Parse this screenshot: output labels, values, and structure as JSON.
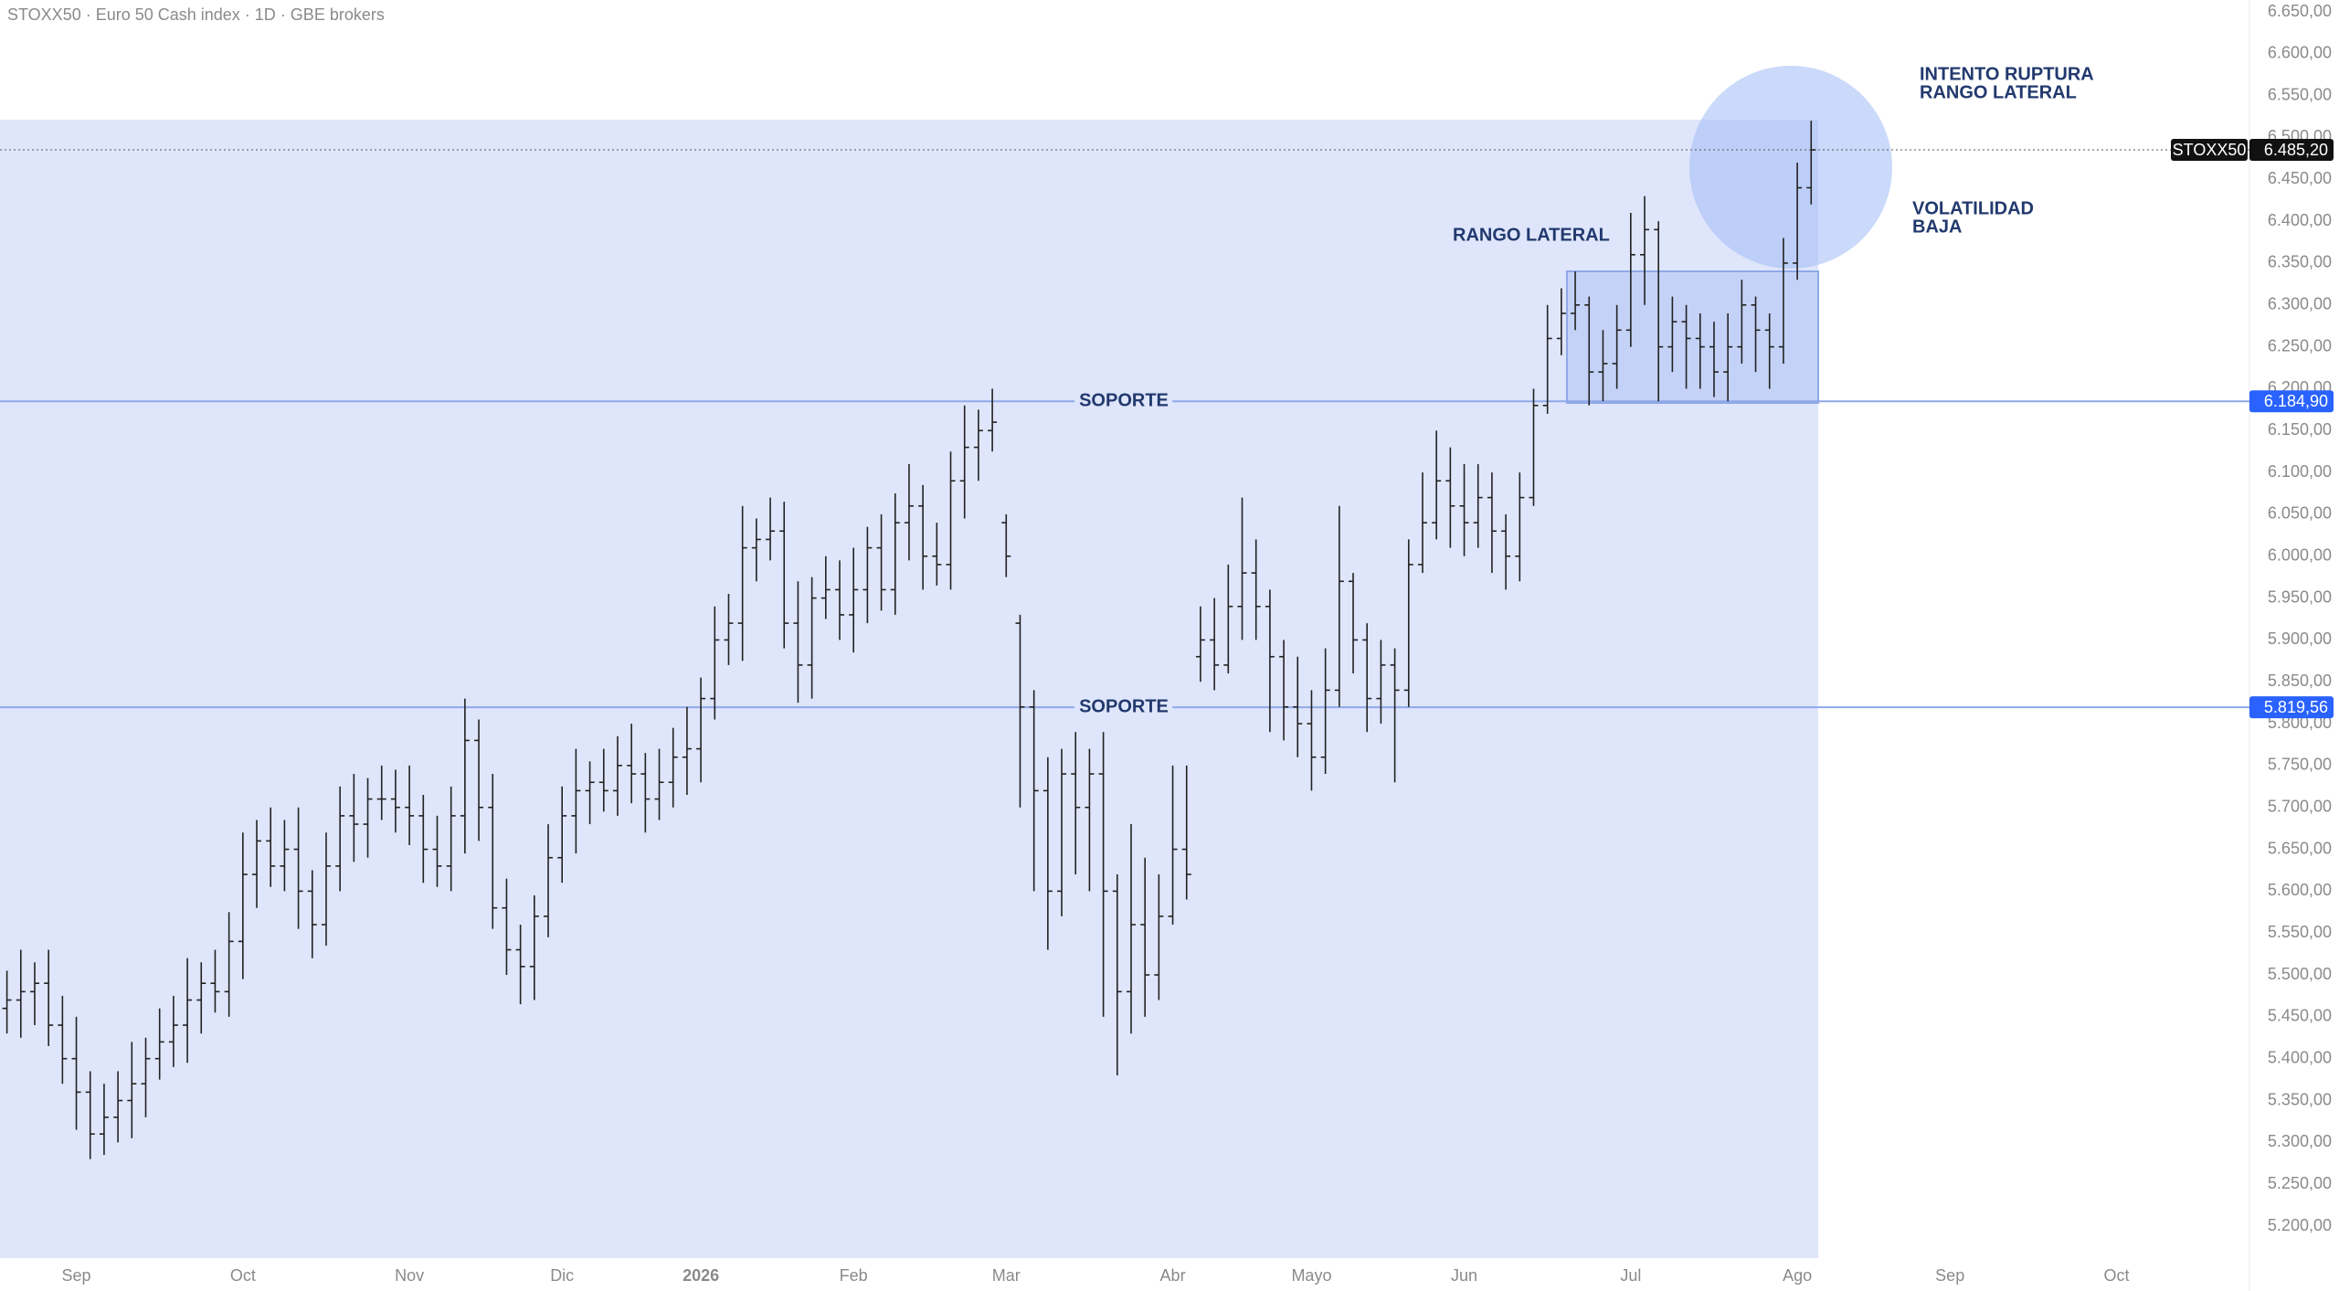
{
  "chart_data": {
    "type": "ohlc",
    "title": "STOXX50 · Euro 50 Cash index · 1D · GBE brokers",
    "color": "#222222",
    "categories": [
      null,
      null,
      null,
      null,
      null,
      "Sep",
      null,
      null,
      null,
      null,
      null,
      null,
      null,
      null,
      null,
      null,
      null,
      "Oct",
      null,
      null,
      null,
      null,
      null,
      null,
      null,
      null,
      null,
      null,
      null,
      "Nov",
      null,
      null,
      null,
      null,
      null,
      null,
      null,
      null,
      null,
      null,
      "Dic",
      null,
      null,
      null,
      null,
      null,
      null,
      null,
      null,
      null,
      "2026",
      null,
      null,
      null,
      null,
      null,
      null,
      null,
      null,
      null,
      null,
      "Feb",
      null,
      null,
      null,
      null,
      null,
      null,
      null,
      null,
      null,
      null,
      "Mar",
      null,
      null,
      null,
      null,
      null,
      null,
      null,
      null,
      null,
      null,
      null,
      "Abr",
      null,
      null,
      null,
      null,
      null,
      null,
      null,
      null,
      null,
      "Mayo",
      null,
      null,
      null,
      null,
      null,
      null,
      null,
      null,
      null,
      null,
      "Jun",
      null,
      null,
      null,
      null,
      null,
      null,
      null,
      null,
      null,
      null,
      null,
      "Jul",
      null,
      null,
      null,
      null,
      null,
      null,
      null,
      null,
      null,
      null,
      null,
      "Ago",
      null,
      null,
      null,
      null,
      null,
      null,
      null,
      null,
      null,
      null,
      "Sep",
      null,
      null,
      null,
      null,
      null,
      null,
      null,
      null,
      null,
      null,
      null,
      "Oct",
      null,
      null,
      null,
      null,
      null,
      null,
      null,
      null,
      null
    ],
    "ohlc": [
      [
        5460,
        5505,
        5430,
        5470
      ],
      [
        5470,
        5530,
        5425,
        5480
      ],
      [
        5480,
        5515,
        5440,
        5490
      ],
      [
        5490,
        5530,
        5415,
        5440
      ],
      [
        5440,
        5475,
        5370,
        5400
      ],
      [
        5400,
        5450,
        5315,
        5360
      ],
      [
        5360,
        5385,
        5280,
        5310
      ],
      [
        5310,
        5370,
        5285,
        5330
      ],
      [
        5330,
        5385,
        5300,
        5350
      ],
      [
        5350,
        5420,
        5305,
        5370
      ],
      [
        5370,
        5425,
        5330,
        5400
      ],
      [
        5400,
        5460,
        5375,
        5420
      ],
      [
        5420,
        5475,
        5390,
        5440
      ],
      [
        5440,
        5520,
        5395,
        5470
      ],
      [
        5470,
        5515,
        5430,
        5490
      ],
      [
        5490,
        5530,
        5455,
        5480
      ],
      [
        5480,
        5575,
        5450,
        5540
      ],
      [
        5540,
        5670,
        5495,
        5620
      ],
      [
        5620,
        5685,
        5580,
        5660
      ],
      [
        5660,
        5700,
        5605,
        5630
      ],
      [
        5630,
        5685,
        5600,
        5650
      ],
      [
        5650,
        5700,
        5555,
        5600
      ],
      [
        5600,
        5625,
        5520,
        5560
      ],
      [
        5560,
        5670,
        5535,
        5630
      ],
      [
        5630,
        5725,
        5600,
        5690
      ],
      [
        5690,
        5740,
        5635,
        5680
      ],
      [
        5680,
        5735,
        5640,
        5710
      ],
      [
        5710,
        5750,
        5685,
        5710
      ],
      [
        5710,
        5745,
        5670,
        5700
      ],
      [
        5700,
        5750,
        5655,
        5690
      ],
      [
        5690,
        5715,
        5610,
        5650
      ],
      [
        5650,
        5690,
        5605,
        5630
      ],
      [
        5630,
        5725,
        5600,
        5690
      ],
      [
        5690,
        5830,
        5645,
        5780
      ],
      [
        5780,
        5805,
        5660,
        5700
      ],
      [
        5700,
        5740,
        5555,
        5580
      ],
      [
        5580,
        5615,
        5500,
        5530
      ],
      [
        5530,
        5560,
        5465,
        5510
      ],
      [
        5510,
        5595,
        5470,
        5570
      ],
      [
        5570,
        5680,
        5545,
        5640
      ],
      [
        5640,
        5725,
        5610,
        5690
      ],
      [
        5690,
        5770,
        5645,
        5720
      ],
      [
        5720,
        5755,
        5680,
        5730
      ],
      [
        5730,
        5770,
        5695,
        5720
      ],
      [
        5720,
        5785,
        5690,
        5750
      ],
      [
        5750,
        5800,
        5705,
        5740
      ],
      [
        5740,
        5765,
        5670,
        5710
      ],
      [
        5710,
        5770,
        5685,
        5730
      ],
      [
        5730,
        5795,
        5700,
        5760
      ],
      [
        5760,
        5820,
        5715,
        5770
      ],
      [
        5770,
        5855,
        5730,
        5830
      ],
      [
        5830,
        5940,
        5805,
        5900
      ],
      [
        5900,
        5955,
        5870,
        5920
      ],
      [
        5920,
        6060,
        5875,
        6010
      ],
      [
        6010,
        6045,
        5970,
        6020
      ],
      [
        6020,
        6070,
        5995,
        6030
      ],
      [
        6030,
        6065,
        5890,
        5920
      ],
      [
        5920,
        5970,
        5825,
        5870
      ],
      [
        5870,
        5975,
        5830,
        5950
      ],
      [
        5950,
        6000,
        5925,
        5960
      ],
      [
        5960,
        5995,
        5900,
        5930
      ],
      [
        5930,
        6010,
        5885,
        5960
      ],
      [
        5960,
        6035,
        5920,
        6010
      ],
      [
        6010,
        6050,
        5935,
        5960
      ],
      [
        5960,
        6075,
        5930,
        6040
      ],
      [
        6040,
        6110,
        5995,
        6060
      ],
      [
        6060,
        6085,
        5960,
        6000
      ],
      [
        6000,
        6040,
        5965,
        5990
      ],
      [
        5990,
        6125,
        5960,
        6090
      ],
      [
        6090,
        6180,
        6045,
        6130
      ],
      [
        6130,
        6175,
        6090,
        6150
      ],
      [
        6150,
        6200,
        6125,
        6160
      ],
      [
        6040,
        6050,
        5975,
        6000
      ],
      [
        5920,
        5930,
        5700,
        5820
      ],
      [
        5820,
        5840,
        5600,
        5720
      ],
      [
        5720,
        5760,
        5530,
        5600
      ],
      [
        5600,
        5770,
        5570,
        5740
      ],
      [
        5740,
        5790,
        5620,
        5700
      ],
      [
        5700,
        5770,
        5600,
        5740
      ],
      [
        5740,
        5790,
        5450,
        5600
      ],
      [
        5600,
        5620,
        5380,
        5480
      ],
      [
        5480,
        5680,
        5430,
        5560
      ],
      [
        5560,
        5640,
        5450,
        5500
      ],
      [
        5500,
        5620,
        5470,
        5570
      ],
      [
        5570,
        5750,
        5560,
        5650
      ],
      [
        5650,
        5750,
        5590,
        5620
      ],
      [
        5880,
        5940,
        5850,
        5900
      ],
      [
        5900,
        5950,
        5840,
        5870
      ],
      [
        5870,
        5990,
        5860,
        5940
      ],
      [
        5940,
        6070,
        5900,
        5980
      ],
      [
        5980,
        6020,
        5900,
        5940
      ],
      [
        5940,
        5960,
        5790,
        5880
      ],
      [
        5880,
        5900,
        5780,
        5820
      ],
      [
        5820,
        5880,
        5760,
        5800
      ],
      [
        5800,
        5840,
        5720,
        5760
      ],
      [
        5760,
        5890,
        5740,
        5840
      ],
      [
        5840,
        6060,
        5820,
        5970
      ],
      [
        5970,
        5980,
        5860,
        5900
      ],
      [
        5900,
        5920,
        5790,
        5830
      ],
      [
        5830,
        5900,
        5800,
        5870
      ],
      [
        5870,
        5890,
        5730,
        5840
      ],
      [
        5840,
        6020,
        5820,
        5990
      ],
      [
        5990,
        6100,
        5980,
        6040
      ],
      [
        6040,
        6150,
        6020,
        6090
      ],
      [
        6090,
        6130,
        6010,
        6060
      ],
      [
        6060,
        6110,
        6000,
        6040
      ],
      [
        6040,
        6110,
        6010,
        6070
      ],
      [
        6070,
        6100,
        5980,
        6030
      ],
      [
        6030,
        6050,
        5960,
        6000
      ],
      [
        6000,
        6100,
        5970,
        6070
      ],
      [
        6070,
        6200,
        6060,
        6180
      ],
      [
        6180,
        6300,
        6170,
        6260
      ],
      [
        6260,
        6320,
        6240,
        6290
      ],
      [
        6290,
        6340,
        6270,
        6300
      ],
      [
        6300,
        6310,
        6180,
        6220
      ],
      [
        6220,
        6270,
        6185,
        6230
      ],
      [
        6230,
        6300,
        6200,
        6270
      ],
      [
        6270,
        6410,
        6250,
        6360
      ],
      [
        6360,
        6430,
        6300,
        6390
      ],
      [
        6390,
        6400,
        6185,
        6250
      ],
      [
        6250,
        6310,
        6220,
        6280
      ],
      [
        6280,
        6300,
        6200,
        6260
      ],
      [
        6260,
        6290,
        6200,
        6250
      ],
      [
        6250,
        6280,
        6190,
        6220
      ],
      [
        6220,
        6290,
        6185,
        6250
      ],
      [
        6250,
        6330,
        6230,
        6300
      ],
      [
        6300,
        6310,
        6220,
        6270
      ],
      [
        6270,
        6290,
        6200,
        6250
      ],
      [
        6250,
        6380,
        6230,
        6350
      ],
      [
        6350,
        6470,
        6330,
        6440
      ],
      [
        6440,
        6520,
        6420,
        6485.2
      ],
      null,
      null,
      null,
      null,
      null,
      null,
      null,
      null,
      null,
      null,
      null,
      null,
      null,
      null,
      null,
      null,
      null,
      null,
      null,
      null,
      null,
      null,
      null,
      null,
      null,
      null,
      null,
      null,
      null,
      null,
      null
    ],
    "ylim": [
      5200,
      6650
    ],
    "yticks": [
      {
        "value": 5200,
        "label": "5.200,00"
      },
      {
        "value": 5250,
        "label": "5.250,00"
      },
      {
        "value": 5300,
        "label": "5.300,00"
      },
      {
        "value": 5350,
        "label": "5.350,00"
      },
      {
        "value": 5400,
        "label": "5.400,00"
      },
      {
        "value": 5450,
        "label": "5.450,00"
      },
      {
        "value": 5500,
        "label": "5.500,00"
      },
      {
        "value": 5550,
        "label": "5.550,00"
      },
      {
        "value": 5600,
        "label": "5.600,00"
      },
      {
        "value": 5650,
        "label": "5.650,00"
      },
      {
        "value": 5700,
        "label": "5.700,00"
      },
      {
        "value": 5750,
        "label": "5.750,00"
      },
      {
        "value": 5800,
        "label": "5.800,00"
      },
      {
        "value": 5850,
        "label": "5.850,00"
      },
      {
        "value": 5900,
        "label": "5.900,00"
      },
      {
        "value": 5950,
        "label": "5.950,00"
      },
      {
        "value": 6000,
        "label": "6.000,00"
      },
      {
        "value": 6050,
        "label": "6.050,00"
      },
      {
        "value": 6100,
        "label": "6.100,00"
      },
      {
        "value": 6150,
        "label": "6.150,00"
      },
      {
        "value": 6200,
        "label": "6.200,00"
      },
      {
        "value": 6250,
        "label": "6.250,00"
      },
      {
        "value": 6300,
        "label": "6.300,00"
      },
      {
        "value": 6350,
        "label": "6.350,00"
      },
      {
        "value": 6400,
        "label": "6.400,00"
      },
      {
        "value": 6450,
        "label": "6.450,00"
      },
      {
        "value": 6500,
        "label": "6.500,00"
      },
      {
        "value": 6550,
        "label": "6.550,00"
      },
      {
        "value": 6600,
        "label": "6.600,00"
      },
      {
        "value": 6650,
        "label": "6.650,00"
      }
    ],
    "levels": [
      {
        "value": 6184.9,
        "label": "6.184,90",
        "text": "SOPORTE"
      },
      {
        "value": 5819.56,
        "label": "5.819,56",
        "text": "SOPORTE"
      }
    ],
    "last_price": {
      "value": 6485.2,
      "label": "6.485,20",
      "symbol": "STOXX50"
    },
    "annotations": [
      {
        "lines": [
          "RANGO LATERAL"
        ]
      },
      {
        "lines": [
          "INTENTO RUPTURA",
          "RANGO LATERAL"
        ]
      },
      {
        "lines": [
          "VOLATILIDAD",
          "BAJA"
        ]
      }
    ]
  }
}
